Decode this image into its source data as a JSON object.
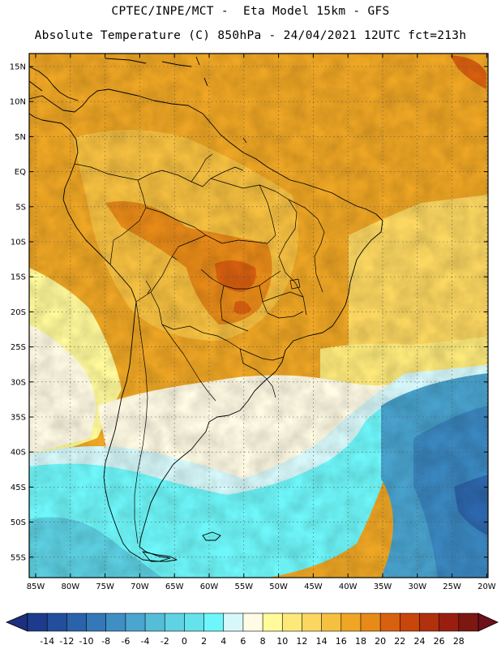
{
  "header": {
    "line1": "CPTEC/INPE/MCT -  Eta Model 15km - GFS",
    "line2": "Absolute Temperature (C) 850hPa - 24/04/2021 12UTC fct=213h"
  },
  "map": {
    "lat_labels": [
      "15N",
      "10N",
      "5N",
      "EQ",
      "5S",
      "10S",
      "15S",
      "20S",
      "25S",
      "30S",
      "35S",
      "40S",
      "45S",
      "50S",
      "55S"
    ],
    "lon_labels": [
      "85W",
      "80W",
      "75W",
      "70W",
      "65W",
      "60W",
      "55W",
      "50W",
      "45W",
      "40W",
      "35W",
      "30W",
      "25W",
      "20W"
    ]
  },
  "colorbar": {
    "labels": [
      "-14",
      "-12",
      "-10",
      "-8",
      "-6",
      "-4",
      "-2",
      "0",
      "2",
      "4",
      "6",
      "8",
      "10",
      "12",
      "14",
      "16",
      "18",
      "20",
      "22",
      "24",
      "26",
      "28"
    ],
    "colors": {
      "under": "#1c2f7e",
      "over": "#6e0f1c",
      "bins": [
        "#1d3b8c",
        "#234e9c",
        "#2b63aa",
        "#3478b8",
        "#3f8fc4",
        "#4aa5cf",
        "#56bdd9",
        "#5fd3e4",
        "#64e3ec",
        "#6ef7fa",
        "#d6f8fa",
        "#fffbe4",
        "#fffa9a",
        "#fde97a",
        "#fbd660",
        "#f5bf40",
        "#eea624",
        "#e78a18",
        "#d9600f",
        "#c8450c",
        "#b1300e",
        "#9a1e0f",
        "#7c1712"
      ]
    }
  },
  "palette": {
    "c4": "#6ef7fa",
    "c6": "#d6f8fa",
    "c8": "#fffbe4",
    "c10": "#fffa9a",
    "c12": "#fde97a",
    "c14": "#fbd660",
    "c16": "#f5bf40",
    "c18": "#eea624",
    "c20": "#e78a18",
    "c22": "#d9600f",
    "deep": "#3a87c0",
    "mid": "#48a2cd",
    "cyan": "#5ccfe1",
    "darkblue": "#2c66ab"
  }
}
